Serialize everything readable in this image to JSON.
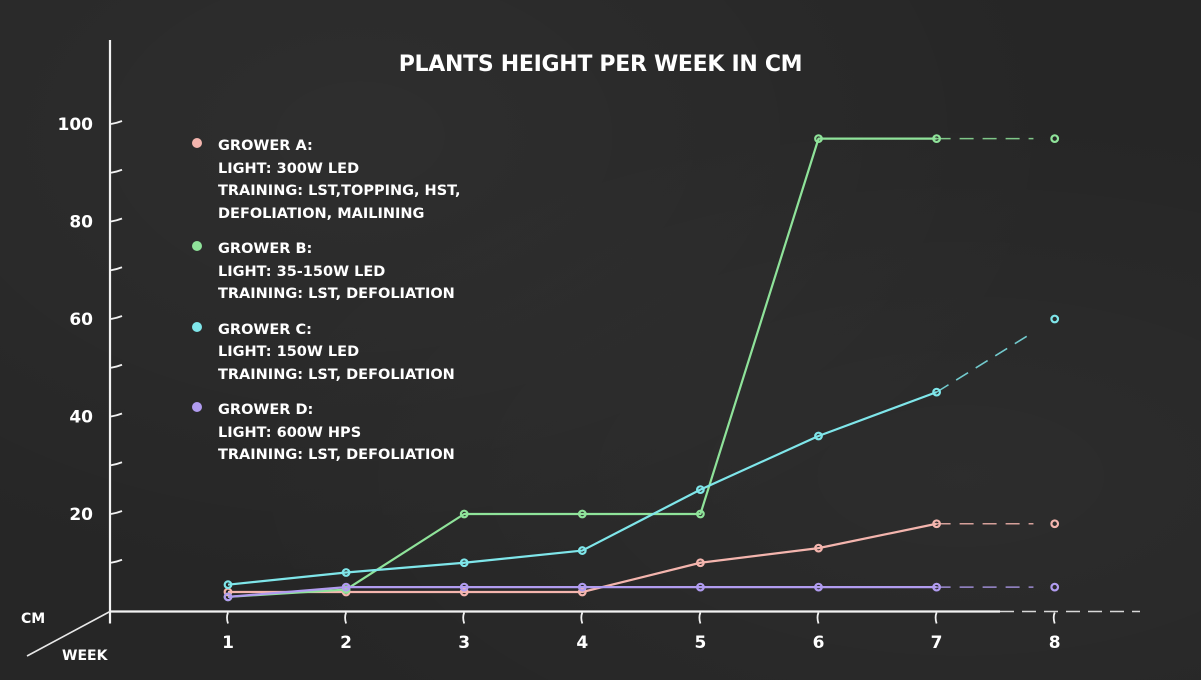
{
  "title": "PLANTS HEIGHT PER WEEK IN CM",
  "axes": {
    "y_unit": "CM",
    "x_unit": "WEEK",
    "y_ticks": [
      "100",
      "80",
      "60",
      "40",
      "20"
    ],
    "x_ticks": [
      "1",
      "2",
      "3",
      "4",
      "5",
      "6",
      "7",
      "8"
    ]
  },
  "legend": [
    {
      "name": "GROWER A:",
      "lines": [
        "LIGHT: 300W LED",
        "TRAINING: LST,TOPPING, HST,",
        "DEFOLIATION, MAILINING"
      ],
      "color": "#f4b5ae"
    },
    {
      "name": "GROWER B:",
      "lines": [
        "LIGHT: 35-150W  LED",
        "TRAINING: LST, DEFOLIATION"
      ],
      "color": "#8fe39a"
    },
    {
      "name": "GROWER C:",
      "lines": [
        "LIGHT: 150W LED",
        "TRAINING: LST, DEFOLIATION"
      ],
      "color": "#7fe6ea"
    },
    {
      "name": "GROWER D:",
      "lines": [
        "LIGHT: 600W HPS",
        "TRAINING: LST, DEFOLIATION"
      ],
      "color": "#b19cf0"
    }
  ],
  "chart_data": {
    "type": "line",
    "title": "PLANTS HEIGHT PER WEEK IN CM",
    "xlabel": "WEEK",
    "ylabel": "CM",
    "x": [
      1,
      2,
      3,
      4,
      5,
      6,
      7,
      8
    ],
    "ylim": [
      0,
      100
    ],
    "y_ticks": [
      20,
      40,
      60,
      80,
      100
    ],
    "grid": false,
    "legend_position": "upper-left",
    "series": [
      {
        "name": "GROWER A",
        "color": "#f4b5ae",
        "values": [
          4,
          4,
          4,
          4,
          10,
          13,
          18,
          18
        ],
        "dashed_last_segment": true
      },
      {
        "name": "GROWER B",
        "color": "#8fe39a",
        "values": [
          3,
          4.5,
          20,
          20,
          20,
          97,
          97,
          97
        ],
        "dashed_last_segment": true
      },
      {
        "name": "GROWER C",
        "color": "#7fe6ea",
        "values": [
          5.5,
          8,
          10,
          12.5,
          25,
          36,
          45,
          60
        ],
        "dashed_last_segment": true
      },
      {
        "name": "GROWER D",
        "color": "#b19cf0",
        "values": [
          3,
          5,
          5,
          5,
          5,
          5,
          5,
          5
        ],
        "dashed_last_segment": true
      }
    ]
  }
}
